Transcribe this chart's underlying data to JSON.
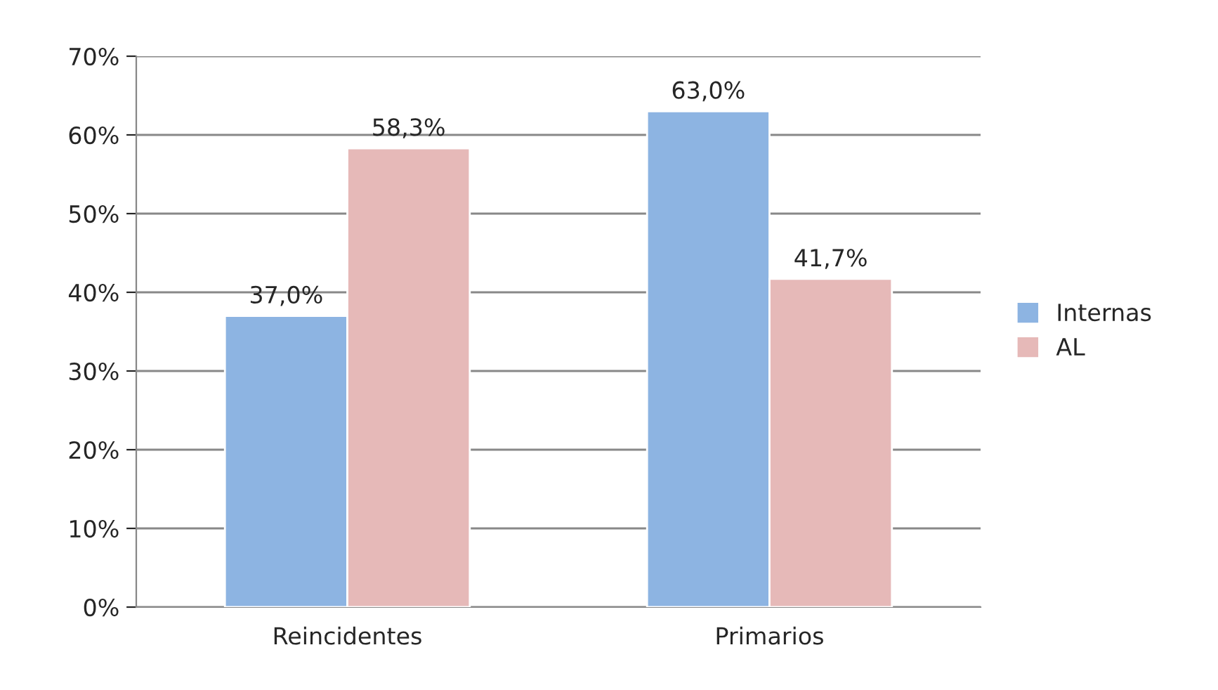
{
  "chart_data": {
    "type": "bar",
    "categories": [
      "Reincidentes",
      "Primarios"
    ],
    "series": [
      {
        "name": "Internas",
        "color": "#8db4e2",
        "values": [
          37.0,
          63.0
        ],
        "value_labels": [
          "37,0%",
          "63,0%"
        ]
      },
      {
        "name": "AL",
        "color": "#e6b9b8",
        "values": [
          58.3,
          41.7
        ],
        "value_labels": [
          "58,3%",
          "41,7%"
        ]
      }
    ],
    "ylim": [
      0,
      70
    ],
    "yticks": [
      {
        "value": 0,
        "label": "0%"
      },
      {
        "value": 10,
        "label": "10%"
      },
      {
        "value": 20,
        "label": "20%"
      },
      {
        "value": 30,
        "label": "30%"
      },
      {
        "value": 40,
        "label": "40%"
      },
      {
        "value": 50,
        "label": "50%"
      },
      {
        "value": 60,
        "label": "60%"
      },
      {
        "value": 70,
        "label": "70%"
      }
    ],
    "grid": "y",
    "legend": "right"
  }
}
